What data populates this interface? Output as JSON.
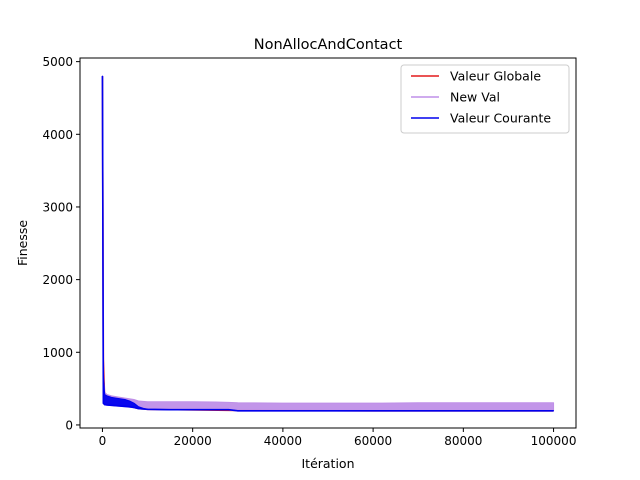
{
  "chart_data": {
    "type": "line",
    "title": "NonAllocAndContact",
    "xlabel": "Itération",
    "ylabel": "Finesse",
    "xlim": [
      -4975,
      104975
    ],
    "ylim": [
      -42,
      5050
    ],
    "xticks": [
      0,
      20000,
      40000,
      60000,
      80000,
      100000
    ],
    "xtick_labels": [
      "0",
      "20000",
      "40000",
      "60000",
      "80000",
      "100000"
    ],
    "yticks": [
      0,
      1000,
      2000,
      3000,
      4000,
      5000
    ],
    "ytick_labels": [
      "0",
      "1000",
      "2000",
      "3000",
      "4000",
      "5000"
    ],
    "grid": false,
    "legend_position": "top-right",
    "series": [
      {
        "name": "Valeur Globale",
        "color": "#e41a1c",
        "x": [
          0,
          200,
          500,
          1000,
          2000,
          3000,
          5000,
          7000,
          8000,
          10000,
          30000,
          60000,
          100000
        ],
        "y": [
          4800,
          900,
          330,
          300,
          290,
          280,
          265,
          240,
          225,
          215,
          200,
          195,
          195
        ]
      },
      {
        "name": "New Val",
        "color": "#bf8fe8",
        "band": true,
        "x": [
          0,
          200,
          500,
          1000,
          2000,
          3000,
          5000,
          7000,
          8000,
          10000,
          15000,
          20000,
          25000,
          28000,
          30000,
          40000,
          50000,
          60000,
          70000,
          80000,
          90000,
          100000
        ],
        "y_low": [
          4800,
          300,
          280,
          275,
          270,
          265,
          255,
          240,
          225,
          215,
          210,
          210,
          210,
          210,
          195,
          195,
          195,
          195,
          195,
          195,
          195,
          195
        ],
        "y_high": [
          4800,
          700,
          450,
          420,
          400,
          390,
          370,
          350,
          330,
          320,
          320,
          320,
          315,
          310,
          305,
          300,
          300,
          300,
          305,
          305,
          305,
          305
        ]
      },
      {
        "name": "Valeur Courante",
        "color": "#0000ee",
        "band": true,
        "x": [
          0,
          200,
          500,
          1000,
          2000,
          3000,
          5000,
          6000,
          7000,
          8000,
          9000,
          10000,
          15000,
          20000,
          25000,
          28000,
          30000,
          60000,
          100000
        ],
        "y_low": [
          4800,
          300,
          280,
          275,
          270,
          265,
          255,
          250,
          240,
          225,
          220,
          215,
          210,
          210,
          210,
          210,
          195,
          195,
          195
        ],
        "y_high": [
          4800,
          700,
          420,
          400,
          380,
          370,
          350,
          330,
          300,
          250,
          230,
          215,
          210,
          210,
          210,
          210,
          195,
          195,
          195
        ]
      }
    ]
  }
}
